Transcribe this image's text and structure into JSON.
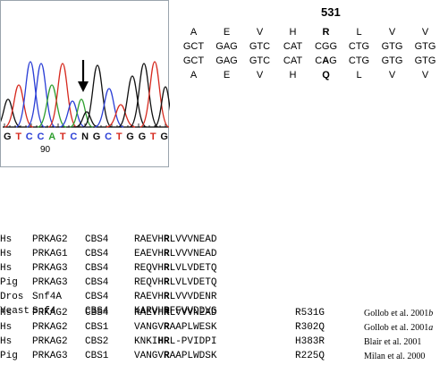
{
  "chromatogram": {
    "sequence": [
      "G",
      "T",
      "C",
      "C",
      "A",
      "T",
      "C",
      "N",
      "G",
      "C",
      "T",
      "G",
      "G",
      "T",
      "G"
    ],
    "position_label": "90"
  },
  "codon": {
    "position": "531",
    "rows": [
      [
        "A",
        "E",
        "V",
        "H",
        "R",
        "L",
        "V",
        "V"
      ],
      [
        "GCT",
        "GAG",
        "GTC",
        "CAT",
        "CGG",
        "CTG",
        "GTG",
        "GTG"
      ],
      [
        "GCT",
        "GAG",
        "GTC",
        "CAT",
        "CAG",
        "CTG",
        "GTG",
        "GTG"
      ],
      [
        "A",
        "E",
        "V",
        "H",
        "Q",
        "L",
        "V",
        "V"
      ]
    ]
  },
  "alignment1": [
    {
      "species": "Hs",
      "gene": "PRKAG2",
      "domain": "CBS4",
      "pre": "RAEVH",
      "key": "R",
      "post": "LVVVNEAD"
    },
    {
      "species": "Hs",
      "gene": "PRKAG1",
      "domain": "CBS4",
      "pre": "EAEVH",
      "key": "R",
      "post": "LVVVNEAD"
    },
    {
      "species": "Hs",
      "gene": "PRKAG3",
      "domain": "CBS4",
      "pre": "REQVH",
      "key": "R",
      "post": "LVLVDETQ"
    },
    {
      "species": "Pig",
      "gene": "PRKAG3",
      "domain": "CBS4",
      "pre": "REQVH",
      "key": "R",
      "post": "LVLVDETQ"
    },
    {
      "species": "Dros",
      "gene": "Snf4A",
      "domain": "CBS4",
      "pre": "RAEVH",
      "key": "R",
      "post": "LVVVDENR"
    },
    {
      "species": "Yeast",
      "gene": "Snf4",
      "domain": "CBS4",
      "pre": "KARVH",
      "key": "R",
      "post": "FFVVDDVG"
    }
  ],
  "alignment2": [
    {
      "species": "Hs",
      "gene": "PRKAG2",
      "domain": "CBS4",
      "pre": "RAEVH",
      "key": "R",
      "post": "LVVVNEAD",
      "mut": "R531G",
      "ref": "Gollob et al. 2001",
      "ref_suffix": "b"
    },
    {
      "species": "Hs",
      "gene": "PRKAG2",
      "domain": "CBS1",
      "pre": "VANGV",
      "key": "R",
      "post": "AAPLWESK",
      "mut": "R302Q",
      "ref": "Gollob et al. 2001",
      "ref_suffix": "a"
    },
    {
      "species": "Hs",
      "gene": "PRKAG2",
      "domain": "CBS2",
      "pre": "KNKI",
      "key": "HR",
      "post": "L-PVIDPI",
      "mut": "H383R",
      "ref": "Blair et al. 2001",
      "ref_suffix": ""
    },
    {
      "species": "Pig",
      "gene": "PRKAG3",
      "domain": "CBS1",
      "pre": "VANGV",
      "key": "R",
      "post": "AAPLWDSK",
      "mut": "R225Q",
      "ref": "Milan et al. 2000",
      "ref_suffix": ""
    }
  ],
  "colors": {
    "A": "#2e9e2e",
    "C": "#2b3fd6",
    "G": "#111111",
    "T": "#d62a1f",
    "N": "#111111",
    "arrow": "#000000",
    "frame": "#9aa4ad"
  },
  "icons": [
    "down-arrow-icon"
  ]
}
